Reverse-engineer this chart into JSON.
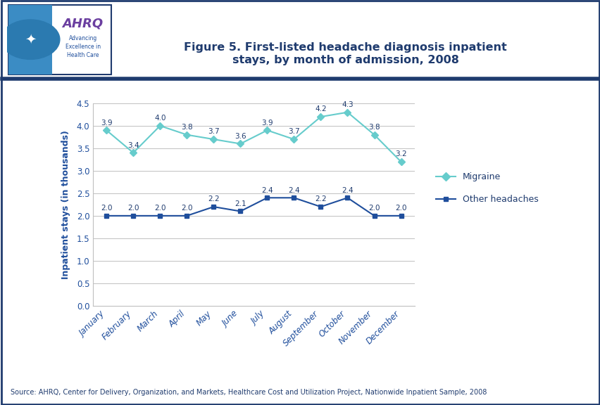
{
  "title": "Figure 5. First-listed headache diagnosis inpatient\nstays, by month of admission, 2008",
  "ylabel": "Inpatient stays (in thousands)",
  "months": [
    "January",
    "February",
    "March",
    "April",
    "May",
    "June",
    "July",
    "August",
    "September",
    "October",
    "November",
    "December"
  ],
  "migraine": [
    3.9,
    3.4,
    4.0,
    3.8,
    3.7,
    3.6,
    3.9,
    3.7,
    4.2,
    4.3,
    3.8,
    3.2
  ],
  "other_headaches": [
    2.0,
    2.0,
    2.0,
    2.0,
    2.2,
    2.1,
    2.4,
    2.4,
    2.2,
    2.4,
    2.0,
    2.0
  ],
  "migraine_color": "#66CCCC",
  "other_color": "#1F4E9C",
  "ylim": [
    0.0,
    4.5
  ],
  "yticks": [
    0.0,
    0.5,
    1.0,
    1.5,
    2.0,
    2.5,
    3.0,
    3.5,
    4.0,
    4.5
  ],
  "legend_migraine": "Migraine",
  "legend_other": "Other headaches",
  "source_text": "Source: AHRQ, Center for Delivery, Organization, and Markets, Healthcare Cost and Utilization Project, Nationwide Inpatient Sample, 2008",
  "title_color": "#1F3B6E",
  "axis_label_color": "#1F4E9C",
  "tick_label_color": "#1F4E9C",
  "background_color": "#FFFFFF",
  "header_bar_color": "#1F3B6E",
  "grid_color": "#C0C0C0",
  "fig_width": 8.53,
  "fig_height": 5.76
}
